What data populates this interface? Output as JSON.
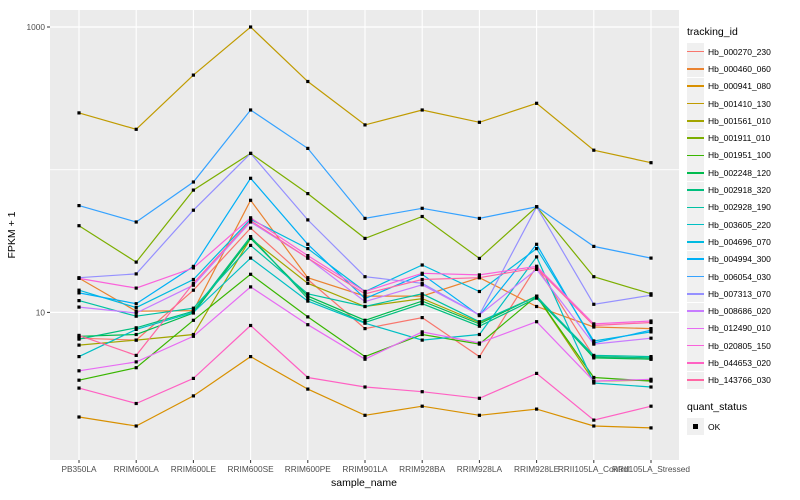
{
  "colors": {
    "background": "#FFFFFF",
    "panel_background": "#EBEBEB",
    "grid": "#FFFFFF",
    "point": "#000000",
    "tick_text": "#4D4D4D",
    "axis_title_text": "#000000"
  },
  "chart_data": {
    "type": "line",
    "xlabel": "sample_name",
    "ylabel": "FPKM + 1",
    "y_scale": "log10",
    "y_tick_labels": [
      {
        "label": "1000",
        "value": 1000
      },
      {
        "label": "10",
        "value": 10
      }
    ],
    "y_gridlines": [
      1000,
      100,
      10
    ],
    "grid": "on",
    "legend_position": "right",
    "legend_title": "tracking_id",
    "quant_title": "quant_status",
    "quant_items": [
      "OK"
    ],
    "x_categories": [
      "PB350LA",
      "RRIM600LA",
      "RRIM600LE",
      "RRIM600SE",
      "RRIM600PE",
      "RRIM901LA",
      "RRIM928BA",
      "RRIM928LA",
      "RRIM928LE",
      "RRII105LA_Control",
      "RRII105LA_Stressed"
    ],
    "series": [
      {
        "name": "Hb_000270_230",
        "color": "#F8766D",
        "values": [
          6.6,
          6.4,
          14.3,
          39,
          17,
          7.7,
          9.2,
          4.9,
          21,
          4.9,
          4.7
        ]
      },
      {
        "name": "Hb_000460_060",
        "color": "#EA8331",
        "values": [
          17.4,
          10.2,
          10.3,
          61,
          17.5,
          13,
          13,
          17.5,
          11,
          7.9,
          7.7
        ]
      },
      {
        "name": "Hb_000941_080",
        "color": "#D89000",
        "values": [
          1.85,
          1.6,
          2.6,
          4.9,
          2.9,
          1.9,
          2.2,
          1.9,
          2.1,
          1.6,
          1.55
        ]
      },
      {
        "name": "Hb_001410_130",
        "color": "#C09B00",
        "values": [
          250,
          192,
          460,
          1000,
          415,
          206,
          262,
          215,
          292,
          137,
          112
        ]
      },
      {
        "name": "Hb_001561_010",
        "color": "#A3A500",
        "values": [
          5.9,
          6.4,
          7.0,
          33,
          16,
          11,
          12.5,
          8.5,
          13,
          3.3,
          3.35
        ]
      },
      {
        "name": "Hb_001911_010",
        "color": "#7CAE00",
        "values": [
          40.5,
          22.5,
          72,
          130,
          68,
          33,
          47,
          23.9,
          55,
          17.8,
          13.5
        ]
      },
      {
        "name": "Hb_001951_100",
        "color": "#39B600",
        "values": [
          3.35,
          4.1,
          8.8,
          18.5,
          9.3,
          4.9,
          7.0,
          6.0,
          13,
          3.5,
          3.3
        ]
      },
      {
        "name": "Hb_002248_120",
        "color": "#00BB4E",
        "values": [
          6.8,
          7.0,
          9.9,
          33,
          13,
          8.8,
          12,
          8.3,
          13,
          4.8,
          4.7
        ]
      },
      {
        "name": "Hb_002918_320",
        "color": "#00BF7D",
        "values": [
          6.5,
          7.8,
          10.2,
          34,
          12.5,
          8.5,
          11.5,
          8.0,
          12.6,
          4.9,
          4.8
        ]
      },
      {
        "name": "Hb_002928_190",
        "color": "#00C1A3",
        "values": [
          12.1,
          9.4,
          10.7,
          29.5,
          13.5,
          11,
          13.5,
          8.6,
          12.9,
          5.0,
          4.9
        ]
      },
      {
        "name": "Hb_003605_220",
        "color": "#00BFC4",
        "values": [
          4.9,
          7.6,
          10.0,
          24,
          12,
          8.4,
          6.4,
          7.0,
          24.5,
          3.2,
          3.0
        ]
      },
      {
        "name": "Hb_004696_070",
        "color": "#00BAE0",
        "values": [
          14.3,
          10.8,
          17,
          45,
          28,
          14,
          21.5,
          14,
          28,
          6.3,
          7.3
        ]
      },
      {
        "name": "Hb_004994_300",
        "color": "#00B0F6",
        "values": [
          13.7,
          11.5,
          21,
          87,
          30,
          12.5,
          18.5,
          9.5,
          30,
          6.1,
          7.5
        ]
      },
      {
        "name": "Hb_006054_030",
        "color": "#35A2FF",
        "values": [
          56,
          43,
          82,
          262,
          141,
          45.6,
          53.6,
          45.6,
          55,
          29,
          24
        ]
      },
      {
        "name": "Hb_007313_070",
        "color": "#9590FF",
        "values": [
          17.5,
          18.6,
          52,
          130,
          44.5,
          17.8,
          16,
          9.6,
          55,
          11.4,
          13.2
        ]
      },
      {
        "name": "Hb_008686_020",
        "color": "#C77CFF",
        "values": [
          10.9,
          9.9,
          15.5,
          43,
          24,
          11.9,
          15.6,
          9.6,
          20,
          6.0,
          6.6
        ]
      },
      {
        "name": "Hb_012490_010",
        "color": "#E76BF3",
        "values": [
          3.9,
          4.5,
          6.8,
          15.1,
          8.2,
          4.7,
          7.3,
          6.1,
          8.6,
          3.3,
          3.4
        ]
      },
      {
        "name": "Hb_020805_150",
        "color": "#FA62DB",
        "values": [
          17.3,
          14.8,
          20.5,
          46,
          25,
          14,
          18.8,
          18.3,
          21,
          8.3,
          8.7
        ]
      },
      {
        "name": "Hb_044653_020",
        "color": "#FF61C3",
        "values": [
          2.95,
          2.3,
          3.45,
          8.1,
          3.5,
          3.0,
          2.78,
          2.5,
          3.74,
          1.76,
          2.2
        ]
      },
      {
        "name": "Hb_143766_030",
        "color": "#FF67A4",
        "values": [
          6.9,
          5.0,
          16,
          44,
          24,
          13.5,
          17,
          17.5,
          20.5,
          8.1,
          8.5
        ]
      }
    ]
  }
}
